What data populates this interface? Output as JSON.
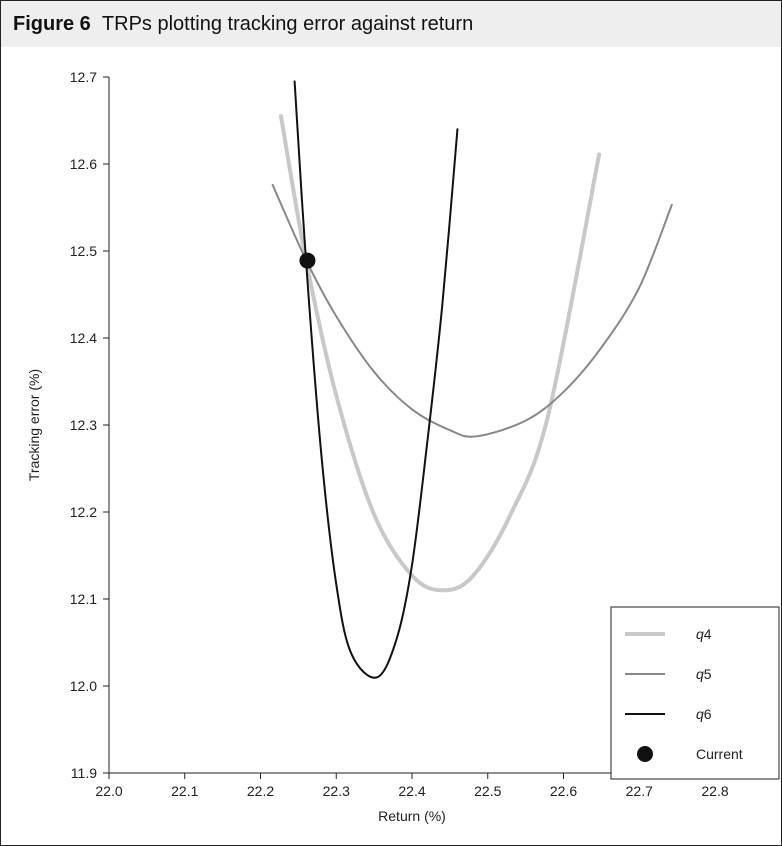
{
  "figure": {
    "number_label": "Figure 6",
    "title_text": "TRPs plotting tracking error against return"
  },
  "chart_data": {
    "type": "line",
    "xlabel": "Return (%)",
    "ylabel": "Tracking error (%)",
    "xlim": [
      22.0,
      22.8
    ],
    "ylim": [
      11.9,
      12.7
    ],
    "xticks": [
      "22.0",
      "22.1",
      "22.2",
      "22.3",
      "22.4",
      "22.5",
      "22.6",
      "22.7",
      "22.8"
    ],
    "yticks": [
      "11.9",
      "12.0",
      "12.1",
      "12.2",
      "12.3",
      "12.4",
      "12.5",
      "12.6",
      "12.7"
    ],
    "grid": false,
    "legend_position": "bottom-right",
    "series": [
      {
        "name": "q4",
        "label_prefix": "q",
        "label_suffix": "4",
        "color": "#c8c8c8",
        "width": 4,
        "x": [
          22.227,
          22.26,
          22.3,
          22.35,
          22.4,
          22.44,
          22.48,
          22.53,
          22.58,
          22.647
        ],
        "y": [
          12.655,
          12.49,
          12.334,
          12.197,
          12.127,
          12.11,
          12.126,
          12.197,
          12.312,
          12.611
        ]
      },
      {
        "name": "q5",
        "label_prefix": "q",
        "label_suffix": "5",
        "color": "#888888",
        "width": 2,
        "x": [
          22.216,
          22.26,
          22.3,
          22.35,
          22.4,
          22.45,
          22.485,
          22.55,
          22.6,
          22.65,
          22.7,
          22.743
        ],
        "y": [
          12.576,
          12.49,
          12.425,
          12.361,
          12.318,
          12.294,
          12.287,
          12.305,
          12.338,
          12.389,
          12.458,
          12.553
        ]
      },
      {
        "name": "q6",
        "label_prefix": "q",
        "label_suffix": "6",
        "color": "#111111",
        "width": 2,
        "x": [
          22.245,
          22.26,
          22.28,
          22.3,
          22.32,
          22.354,
          22.38,
          22.4,
          22.42,
          22.44,
          22.46
        ],
        "y": [
          12.695,
          12.49,
          12.269,
          12.117,
          12.037,
          12.01,
          12.055,
          12.139,
          12.279,
          12.438,
          12.64
        ]
      }
    ],
    "points": [
      {
        "name": "Current",
        "x": 22.262,
        "y": 12.489,
        "color": "#111111"
      }
    ]
  }
}
